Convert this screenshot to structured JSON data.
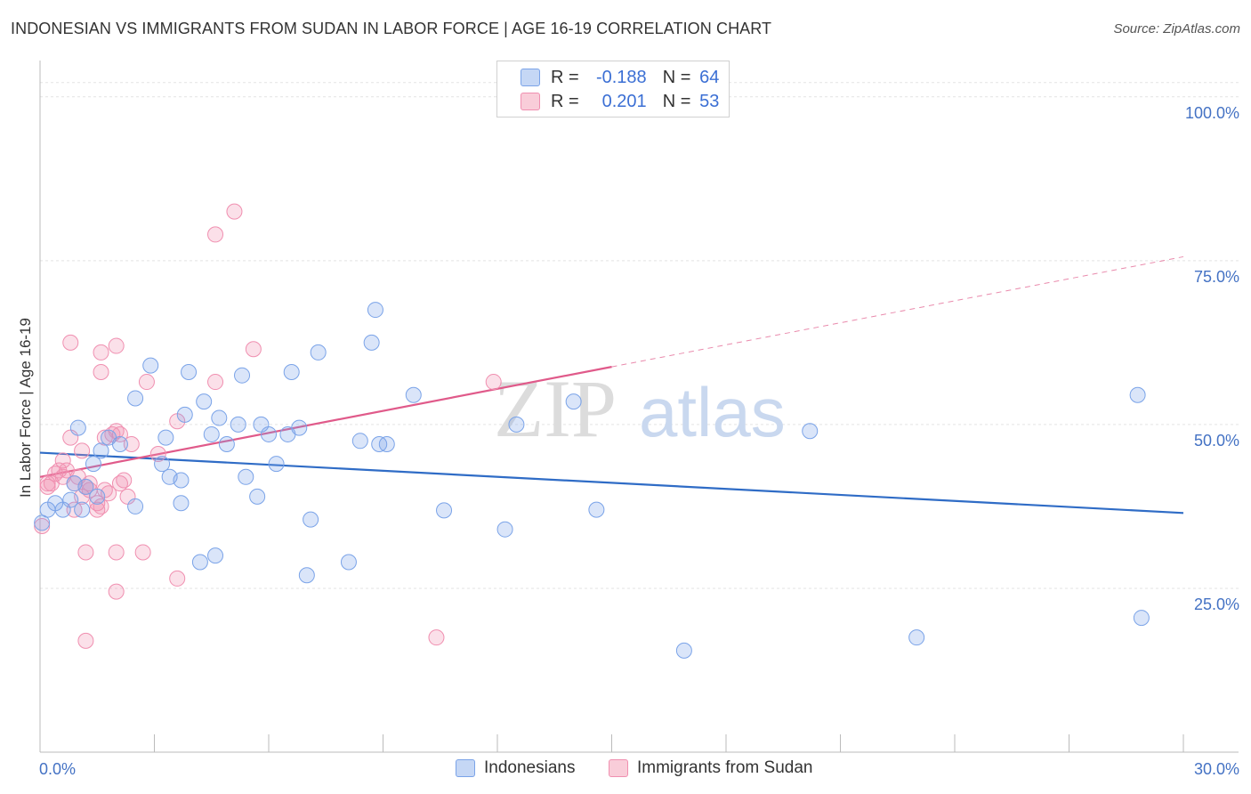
{
  "title": "INDONESIAN VS IMMIGRANTS FROM SUDAN IN LABOR FORCE | AGE 16-19 CORRELATION CHART",
  "source": "Source: ZipAtlas.com",
  "watermark": {
    "zip": "ZIP",
    "atlas": "atlas"
  },
  "colors": {
    "blue": "#7aa3e8",
    "blue_line": "#2f6cc6",
    "pink": "#f08fb0",
    "pink_line": "#e05a8a"
  },
  "legend_top": [
    {
      "r_label": "R =",
      "r_value": "-0.188",
      "n_label": "N =",
      "n_value": "64"
    },
    {
      "r_label": "R =",
      "r_value": "0.201",
      "n_label": "N =",
      "n_value": "53"
    }
  ],
  "chart_data": {
    "type": "scatter",
    "title": "INDONESIAN VS IMMIGRANTS FROM SUDAN IN LABOR FORCE | AGE 16-19 CORRELATION CHART",
    "xlabel": "",
    "ylabel": "In Labor Force | Age 16-19",
    "xlim": [
      0,
      30
    ],
    "ylim": [
      0,
      105
    ],
    "x_tick_labels": [
      "0.0%",
      "30.0%"
    ],
    "y_ticks": [
      25,
      50,
      75,
      100
    ],
    "y_tick_labels": [
      "25.0%",
      "50.0%",
      "75.0%",
      "100.0%"
    ],
    "grid": true,
    "legend": "bottom",
    "series": [
      {
        "name": "Indonesians",
        "color": "#7aa3e8",
        "trend": {
          "x": [
            0,
            30
          ],
          "y": [
            45.7,
            36.5
          ],
          "dashed_from": null
        },
        "points": [
          [
            0.05,
            35
          ],
          [
            0.2,
            37
          ],
          [
            0.4,
            38
          ],
          [
            0.6,
            37
          ],
          [
            0.8,
            38.5
          ],
          [
            1.1,
            37
          ],
          [
            0.9,
            41
          ],
          [
            1.2,
            40.5
          ],
          [
            1.5,
            39
          ],
          [
            1.0,
            49.5
          ],
          [
            1.4,
            44
          ],
          [
            1.6,
            46
          ],
          [
            1.8,
            48
          ],
          [
            2.1,
            47
          ],
          [
            2.5,
            37.5
          ],
          [
            2.5,
            54
          ],
          [
            2.9,
            59
          ],
          [
            3.2,
            44
          ],
          [
            3.3,
            48
          ],
          [
            3.4,
            42
          ],
          [
            3.7,
            41.5
          ],
          [
            3.7,
            38
          ],
          [
            3.8,
            51.5
          ],
          [
            3.9,
            58
          ],
          [
            4.2,
            29
          ],
          [
            4.3,
            53.5
          ],
          [
            4.5,
            48.5
          ],
          [
            4.6,
            30
          ],
          [
            4.7,
            51
          ],
          [
            4.9,
            47
          ],
          [
            5.2,
            50
          ],
          [
            5.3,
            57.5
          ],
          [
            5.4,
            42
          ],
          [
            5.7,
            39
          ],
          [
            5.8,
            50
          ],
          [
            6.0,
            48.5
          ],
          [
            6.2,
            44
          ],
          [
            6.5,
            48.5
          ],
          [
            6.6,
            58
          ],
          [
            6.8,
            49.5
          ],
          [
            7.1,
            35.5
          ],
          [
            7.3,
            61
          ],
          [
            7.0,
            27
          ],
          [
            8.1,
            29
          ],
          [
            8.4,
            47.5
          ],
          [
            8.7,
            62.5
          ],
          [
            8.8,
            67.5
          ],
          [
            8.9,
            47
          ],
          [
            9.1,
            47
          ],
          [
            9.8,
            54.5
          ],
          [
            10.6,
            36.9
          ],
          [
            12.2,
            34
          ],
          [
            12.5,
            50
          ],
          [
            14.0,
            53.5
          ],
          [
            14.6,
            37
          ],
          [
            16.9,
            15.5
          ],
          [
            20.2,
            49
          ],
          [
            23.0,
            17.5
          ],
          [
            28.8,
            54.5
          ],
          [
            28.9,
            20.5
          ]
        ]
      },
      {
        "name": "Immigrants from Sudan",
        "color": "#f08fb0",
        "trend": {
          "x": [
            0,
            15
          ],
          "y": [
            42,
            58.8
          ],
          "dashed_x": [
            15,
            30
          ],
          "dashed_y": [
            58.8,
            75.6
          ]
        },
        "points": [
          [
            0.05,
            34.5
          ],
          [
            0.2,
            40.5
          ],
          [
            0.3,
            41
          ],
          [
            0.4,
            42.5
          ],
          [
            0.5,
            43
          ],
          [
            0.6,
            44.5
          ],
          [
            0.7,
            43
          ],
          [
            0.8,
            48
          ],
          [
            0.9,
            41
          ],
          [
            1.0,
            42
          ],
          [
            1.1,
            46
          ],
          [
            1.1,
            39
          ],
          [
            1.2,
            40.5
          ],
          [
            1.3,
            41
          ],
          [
            0.8,
            62.5
          ],
          [
            1.5,
            38
          ],
          [
            1.6,
            37.5
          ],
          [
            1.7,
            48
          ],
          [
            1.6,
            58
          ],
          [
            1.6,
            61
          ],
          [
            1.7,
            40
          ],
          [
            1.8,
            39.5
          ],
          [
            1.9,
            48.5
          ],
          [
            2.0,
            49
          ],
          [
            2.1,
            48.5
          ],
          [
            2.0,
            62
          ],
          [
            2.1,
            41
          ],
          [
            2.2,
            41.5
          ],
          [
            2.3,
            39
          ],
          [
            2.4,
            47
          ],
          [
            2.8,
            56.5
          ],
          [
            3.1,
            45.5
          ],
          [
            3.6,
            50.5
          ],
          [
            4.6,
            56.5
          ],
          [
            4.6,
            79
          ],
          [
            5.1,
            82.5
          ],
          [
            5.6,
            61.5
          ],
          [
            2.0,
            24.5
          ],
          [
            1.2,
            30.5
          ],
          [
            2.0,
            30.5
          ],
          [
            2.7,
            30.5
          ],
          [
            3.6,
            26.5
          ],
          [
            1.2,
            17
          ],
          [
            10.4,
            17.5
          ],
          [
            11.9,
            56.5
          ],
          [
            0.2,
            41
          ],
          [
            0.6,
            42
          ],
          [
            1.5,
            37
          ],
          [
            0.9,
            37
          ],
          [
            1.3,
            40
          ]
        ]
      }
    ]
  }
}
